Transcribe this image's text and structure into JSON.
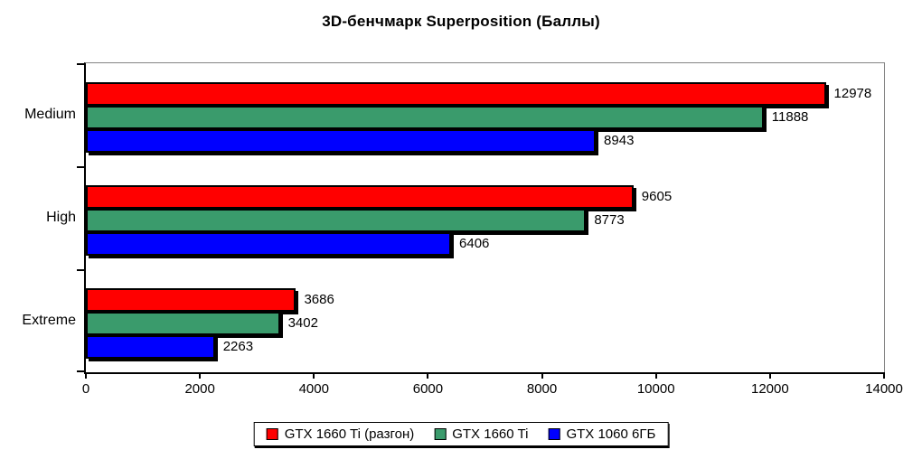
{
  "chart_data": {
    "type": "bar",
    "orientation": "horizontal",
    "title": "3D-бенчмарк Superposition (Баллы)",
    "categories": [
      "Medium",
      "High",
      "Extreme"
    ],
    "series": [
      {
        "name": "GTX 1660 Ti (разгон)",
        "color": "#ff0000",
        "values": [
          12978,
          9605,
          3686
        ]
      },
      {
        "name": "GTX 1660 Ti",
        "color": "#3a9b6c",
        "values": [
          11888,
          8773,
          3402
        ]
      },
      {
        "name": "GTX 1060 6ГБ",
        "color": "#0000ff",
        "values": [
          8943,
          6406,
          2263
        ]
      }
    ],
    "xlim": [
      0,
      14000
    ],
    "xticks": [
      0,
      2000,
      4000,
      6000,
      8000,
      10000,
      12000,
      14000
    ],
    "grid": false,
    "legend_position": "bottom",
    "bar_border_color": "#000000",
    "bar_shadow_color": "#000000",
    "plot_border_color": "#848484",
    "axis_color": "#000000",
    "background_color": "#ffffff",
    "value_labels_shown": true
  }
}
